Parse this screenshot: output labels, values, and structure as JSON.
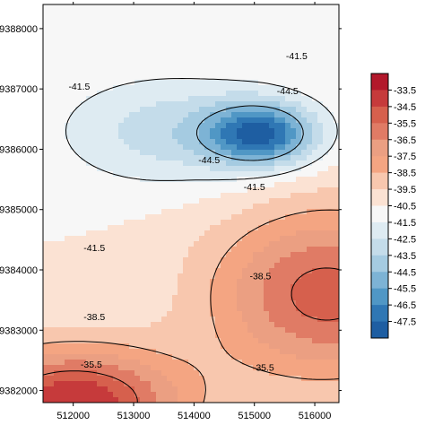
{
  "chart_data": {
    "type": "heatmap",
    "subtype": "filled-contour",
    "title": "",
    "xlabel": "",
    "ylabel": "",
    "xlim": [
      511500,
      516400
    ],
    "ylim": [
      9381800,
      9388400
    ],
    "x_ticks": [
      512000,
      513000,
      514000,
      515000,
      516000
    ],
    "x_tick_labels": [
      "512000",
      "513000",
      "514000",
      "515000",
      "516000"
    ],
    "y_ticks": [
      9382000,
      9383000,
      9384000,
      9385000,
      9386000,
      9387000,
      9388000
    ],
    "y_tick_labels": [
      "9382000",
      "9383000",
      "9384000",
      "9385000",
      "9386000",
      "9387000",
      "9388000"
    ],
    "colorbar": {
      "placement": "right",
      "levels": [
        -33.5,
        -34.5,
        -35.5,
        -36.5,
        -37.5,
        -38.5,
        -39.5,
        -40.5,
        -41.5,
        -42.5,
        -43.5,
        -44.5,
        -45.5,
        -46.5,
        -47.5
      ],
      "labels": [
        "-33.5",
        "-34.5",
        "-35.5",
        "-36.5",
        "-37.5",
        "-38.5",
        "-39.5",
        "-40.5",
        "-41.5",
        "-42.5",
        "-43.5",
        "-44.5",
        "-45.5",
        "-46.5",
        "-47.5"
      ],
      "colors": [
        "#b2182b",
        "#c63a3b",
        "#d6604d",
        "#e07b65",
        "#eb9f82",
        "#f4a582",
        "#f8c7ae",
        "#fbe2d3",
        "#f7f7f7",
        "#deebf2",
        "#c4dcea",
        "#a5cbe1",
        "#7db3d5",
        "#5097c5",
        "#2f77b4",
        "#1e5ea2"
      ]
    },
    "field": {
      "background": -40.5,
      "features": [
        {
          "kind": "low",
          "x": 515100,
          "y": 9386250,
          "value": -47.2,
          "sx": 900,
          "sy": 520
        },
        {
          "kind": "trough",
          "x": 513600,
          "y": 9386300,
          "value": -43.0,
          "sx": 1800,
          "sy": 900
        },
        {
          "kind": "ridge",
          "x": 516200,
          "y": 9383600,
          "value": -35.0,
          "sx": 1900,
          "sy": 1400
        },
        {
          "kind": "high",
          "x": 512000,
          "y": 9381800,
          "value": -33.5,
          "sx": 1800,
          "sy": 900
        }
      ]
    },
    "contour_labels": [
      {
        "text": "-41.5",
        "x": 512100,
        "y": 9387050
      },
      {
        "text": "-41.5",
        "x": 515700,
        "y": 9387550
      },
      {
        "text": "-44.5",
        "x": 515550,
        "y": 9386970
      },
      {
        "text": "-44.5",
        "x": 514250,
        "y": 9385830
      },
      {
        "text": "-41.5",
        "x": 515000,
        "y": 9385380
      },
      {
        "text": "-41.5",
        "x": 512350,
        "y": 9384370
      },
      {
        "text": "-38.5",
        "x": 515100,
        "y": 9383900
      },
      {
        "text": "-38.5",
        "x": 512350,
        "y": 9383230
      },
      {
        "text": "-35.5",
        "x": 512300,
        "y": 9382440
      },
      {
        "text": "-35.5",
        "x": 515150,
        "y": 9382390
      }
    ]
  }
}
